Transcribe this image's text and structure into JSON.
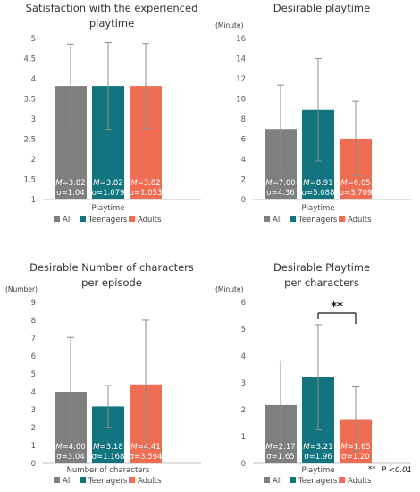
{
  "legend": [
    "All",
    "Teenagers",
    "Adults"
  ],
  "series_colors": [
    "#7f7f7f",
    "#11747e",
    "#ef6d52"
  ],
  "chart_data": [
    {
      "type": "bar",
      "title_lines": [
        "Satisfaction with the experienced",
        "playtime"
      ],
      "unit": "",
      "xlabel": "Playtime",
      "ylim": [
        1,
        5
      ],
      "ystep": 0.5,
      "yticks": [
        "1",
        "1.5",
        "2",
        "2.5",
        "3",
        "3.5",
        "4",
        "4.5",
        "5"
      ],
      "reference_line": 3.1,
      "series": [
        {
          "name": "All",
          "value": 3.82,
          "err": 1.04,
          "m_label": "3.82",
          "sd_label": "σ=1.04"
        },
        {
          "name": "Teenagers",
          "value": 3.82,
          "err": 1.079,
          "m_label": "3.82",
          "sd_label": "σ=1.079"
        },
        {
          "name": "Adults",
          "value": 3.82,
          "err": 1.053,
          "m_label": "3.82",
          "sd_label": "σ=1.053"
        }
      ]
    },
    {
      "type": "bar",
      "title_lines": [
        "Desirable playtime"
      ],
      "unit": "(Minute)",
      "xlabel": "Playtime",
      "ylim": [
        0,
        16
      ],
      "ystep": 2,
      "yticks": [
        "0",
        "2",
        "4",
        "6",
        "8",
        "10",
        "12",
        "14",
        "16"
      ],
      "series": [
        {
          "name": "All",
          "value": 7.0,
          "err": 4.36,
          "m_label": "7.00",
          "sd_label": "σ=4.36"
        },
        {
          "name": "Teenagers",
          "value": 8.91,
          "err": 5.088,
          "m_label": "8.91",
          "sd_label": "σ=5.088"
        },
        {
          "name": "Adults",
          "value": 6.05,
          "err": 3.709,
          "m_label": "6.05",
          "sd_label": "σ=3.709"
        }
      ]
    },
    {
      "type": "bar",
      "title_lines": [
        "Desirable Number of characters",
        "per episode"
      ],
      "unit": "(Number)",
      "xlabel": "Number of characters",
      "ylim": [
        0,
        9
      ],
      "ystep": 1,
      "yticks": [
        "0",
        "1",
        "2",
        "3",
        "4",
        "5",
        "6",
        "7",
        "8",
        "9"
      ],
      "series": [
        {
          "name": "All",
          "value": 4.0,
          "err": 3.04,
          "m_label": "4.00",
          "sd_label": "σ=3.04"
        },
        {
          "name": "Teenagers",
          "value": 3.18,
          "err": 1.168,
          "m_label": "3.18",
          "sd_label": "σ=1.168"
        },
        {
          "name": "Adults",
          "value": 4.41,
          "err": 3.594,
          "m_label": "4.41",
          "sd_label": "σ=3.594"
        }
      ]
    },
    {
      "type": "bar",
      "title_lines": [
        "Desirable Playtime",
        "per characters"
      ],
      "unit": "(Minute)",
      "xlabel": "Playtime",
      "ylim": [
        0,
        6
      ],
      "ystep": 1,
      "yticks": [
        "0",
        "1",
        "2",
        "3",
        "4",
        "5",
        "6"
      ],
      "significance": {
        "between": [
          1,
          2
        ],
        "label": "**"
      },
      "p_note": {
        "stars": "**",
        "text": "P <0.01"
      },
      "series": [
        {
          "name": "All",
          "value": 2.17,
          "err": 1.65,
          "m_label": "2.17",
          "sd_label": "σ=1.65"
        },
        {
          "name": "Teenagers",
          "value": 3.21,
          "err": 1.96,
          "m_label": "3.21",
          "sd_label": "σ=1.96"
        },
        {
          "name": "Adults",
          "value": 1.65,
          "err": 1.2,
          "m_label": "1.65",
          "sd_label": "σ=1.20"
        }
      ]
    }
  ]
}
